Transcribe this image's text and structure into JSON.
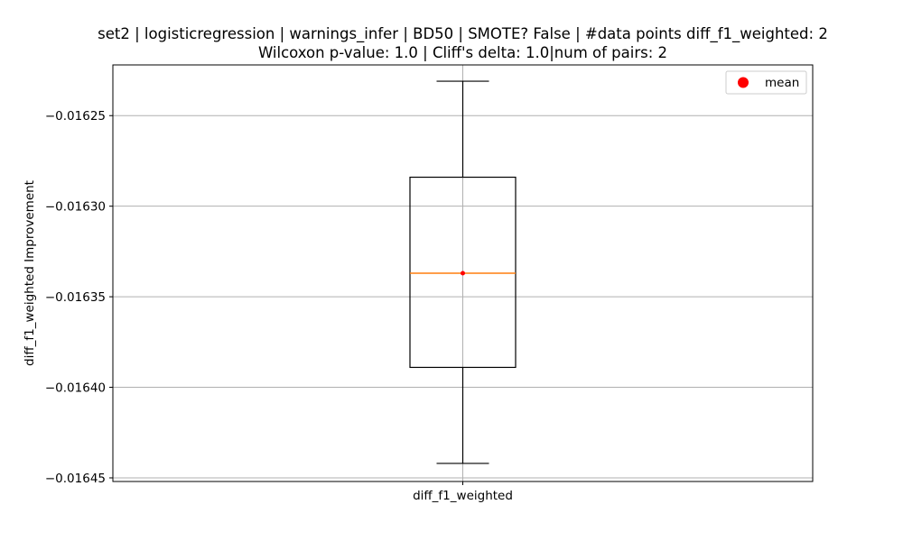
{
  "chart_data": {
    "type": "box",
    "title_lines": [
      "set2 | logisticregression | warnings_infer | BD50 | SMOTE? False | #data points diff_f1_weighted: 2",
      "Wilcoxon p-value: 1.0 | Cliff's delta: 1.0|num of pairs: 2"
    ],
    "xlabel": "",
    "ylabel": "diff_f1_weighted Improvement",
    "categories": [
      "diff_f1_weighted"
    ],
    "ylim": [
      -0.016452,
      -0.016222
    ],
    "y_ticks": [
      -0.01625,
      -0.0163,
      -0.01635,
      -0.0164,
      -0.01645
    ],
    "y_tick_labels": [
      "−0.01625",
      "−0.01630",
      "−0.01635",
      "−0.01640",
      "−0.01645"
    ],
    "grid": true,
    "boxes": [
      {
        "category": "diff_f1_weighted",
        "whisker_high": -0.016231,
        "q3": -0.016284,
        "median": -0.016337,
        "q1": -0.016389,
        "whisker_low": -0.016442,
        "mean": -0.016337
      }
    ],
    "legend": {
      "position": "top-right",
      "entries": [
        {
          "label": "mean",
          "color": "#ff0000",
          "marker": "circle"
        }
      ]
    },
    "colors": {
      "box": "#000000",
      "median": "#ff7f0e",
      "mean": "#ff0000",
      "grid": "#b0b0b0"
    }
  }
}
